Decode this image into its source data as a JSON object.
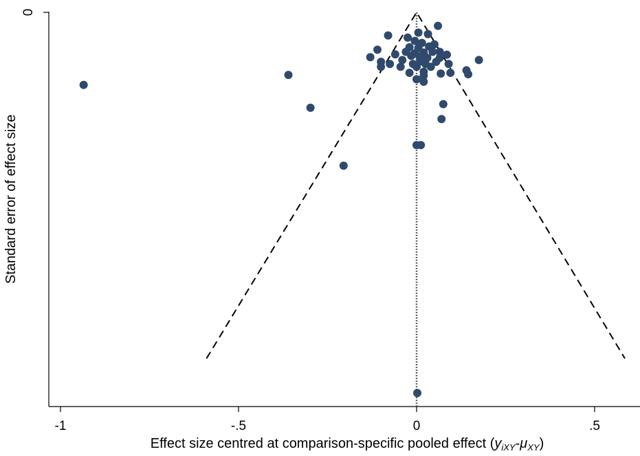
{
  "chart_data": {
    "type": "scatter",
    "subtype": "funnel-plot",
    "title": "",
    "xlabel_main": "Effect size centred at comparison-specific pooled effect (",
    "xlabel_math": {
      "y": "y",
      "y_sub": "iXY",
      "dash": "-",
      "mu": "μ",
      "mu_sub": "XY",
      "close": ")"
    },
    "ylabel": "Standard error of effect size",
    "xlim": [
      -1.03,
      0.6
    ],
    "ylim_reversed": [
      0,
      1.1
    ],
    "x_ticks": [
      -1,
      -0.5,
      0,
      0.5
    ],
    "x_tick_labels": [
      "-1",
      "-.5",
      "0",
      ".5"
    ],
    "y_ticks": [
      0
    ],
    "y_tick_labels": [
      "0"
    ],
    "reference_line_x": 0,
    "funnel": {
      "apex": [
        0,
        0
      ],
      "left": [
        -0.59,
        0.973
      ],
      "right": [
        0.585,
        0.973
      ],
      "style": "dashed"
    },
    "marker_color": "#2f4a6d",
    "points": [
      {
        "x": -0.935,
        "y": 0.204
      },
      {
        "x": -0.36,
        "y": 0.176
      },
      {
        "x": -0.298,
        "y": 0.268
      },
      {
        "x": -0.205,
        "y": 0.431
      },
      {
        "x": -0.13,
        "y": 0.126
      },
      {
        "x": -0.11,
        "y": 0.105
      },
      {
        "x": -0.1,
        "y": 0.153
      },
      {
        "x": -0.1,
        "y": 0.139
      },
      {
        "x": -0.08,
        "y": 0.065
      },
      {
        "x": -0.075,
        "y": 0.145
      },
      {
        "x": -0.06,
        "y": 0.118
      },
      {
        "x": -0.045,
        "y": 0.153
      },
      {
        "x": -0.04,
        "y": 0.134
      },
      {
        "x": -0.03,
        "y": 0.111
      },
      {
        "x": -0.025,
        "y": 0.071
      },
      {
        "x": -0.02,
        "y": 0.17
      },
      {
        "x": -0.02,
        "y": 0.098
      },
      {
        "x": -0.015,
        "y": 0.122
      },
      {
        "x": -0.01,
        "y": 0.145
      },
      {
        "x": -0.005,
        "y": 0.08
      },
      {
        "x": -0.005,
        "y": 0.115
      },
      {
        "x": 0.0,
        "y": 0.153
      },
      {
        "x": 0.0,
        "y": 0.373
      },
      {
        "x": 0.0,
        "y": 0.188
      },
      {
        "x": 0.002,
        "y": 1.07
      },
      {
        "x": 0.005,
        "y": 0.057
      },
      {
        "x": 0.005,
        "y": 0.1
      },
      {
        "x": 0.008,
        "y": 0.124
      },
      {
        "x": 0.01,
        "y": 0.138
      },
      {
        "x": 0.012,
        "y": 0.373
      },
      {
        "x": 0.015,
        "y": 0.086
      },
      {
        "x": 0.02,
        "y": 0.113
      },
      {
        "x": 0.02,
        "y": 0.167
      },
      {
        "x": 0.025,
        "y": 0.145
      },
      {
        "x": 0.02,
        "y": 0.195
      },
      {
        "x": 0.02,
        "y": 0.178
      },
      {
        "x": 0.03,
        "y": 0.128
      },
      {
        "x": 0.032,
        "y": 0.061
      },
      {
        "x": 0.035,
        "y": 0.096
      },
      {
        "x": 0.04,
        "y": 0.153
      },
      {
        "x": 0.045,
        "y": 0.111
      },
      {
        "x": 0.05,
        "y": 0.09
      },
      {
        "x": 0.055,
        "y": 0.139
      },
      {
        "x": 0.06,
        "y": 0.038
      },
      {
        "x": 0.065,
        "y": 0.111
      },
      {
        "x": 0.07,
        "y": 0.3
      },
      {
        "x": 0.068,
        "y": 0.172
      },
      {
        "x": 0.065,
        "y": 0.128
      },
      {
        "x": 0.075,
        "y": 0.258
      },
      {
        "x": 0.085,
        "y": 0.119
      },
      {
        "x": 0.09,
        "y": 0.145
      },
      {
        "x": 0.095,
        "y": 0.17
      },
      {
        "x": 0.14,
        "y": 0.163
      },
      {
        "x": 0.145,
        "y": 0.174
      },
      {
        "x": 0.175,
        "y": 0.134
      }
    ]
  }
}
